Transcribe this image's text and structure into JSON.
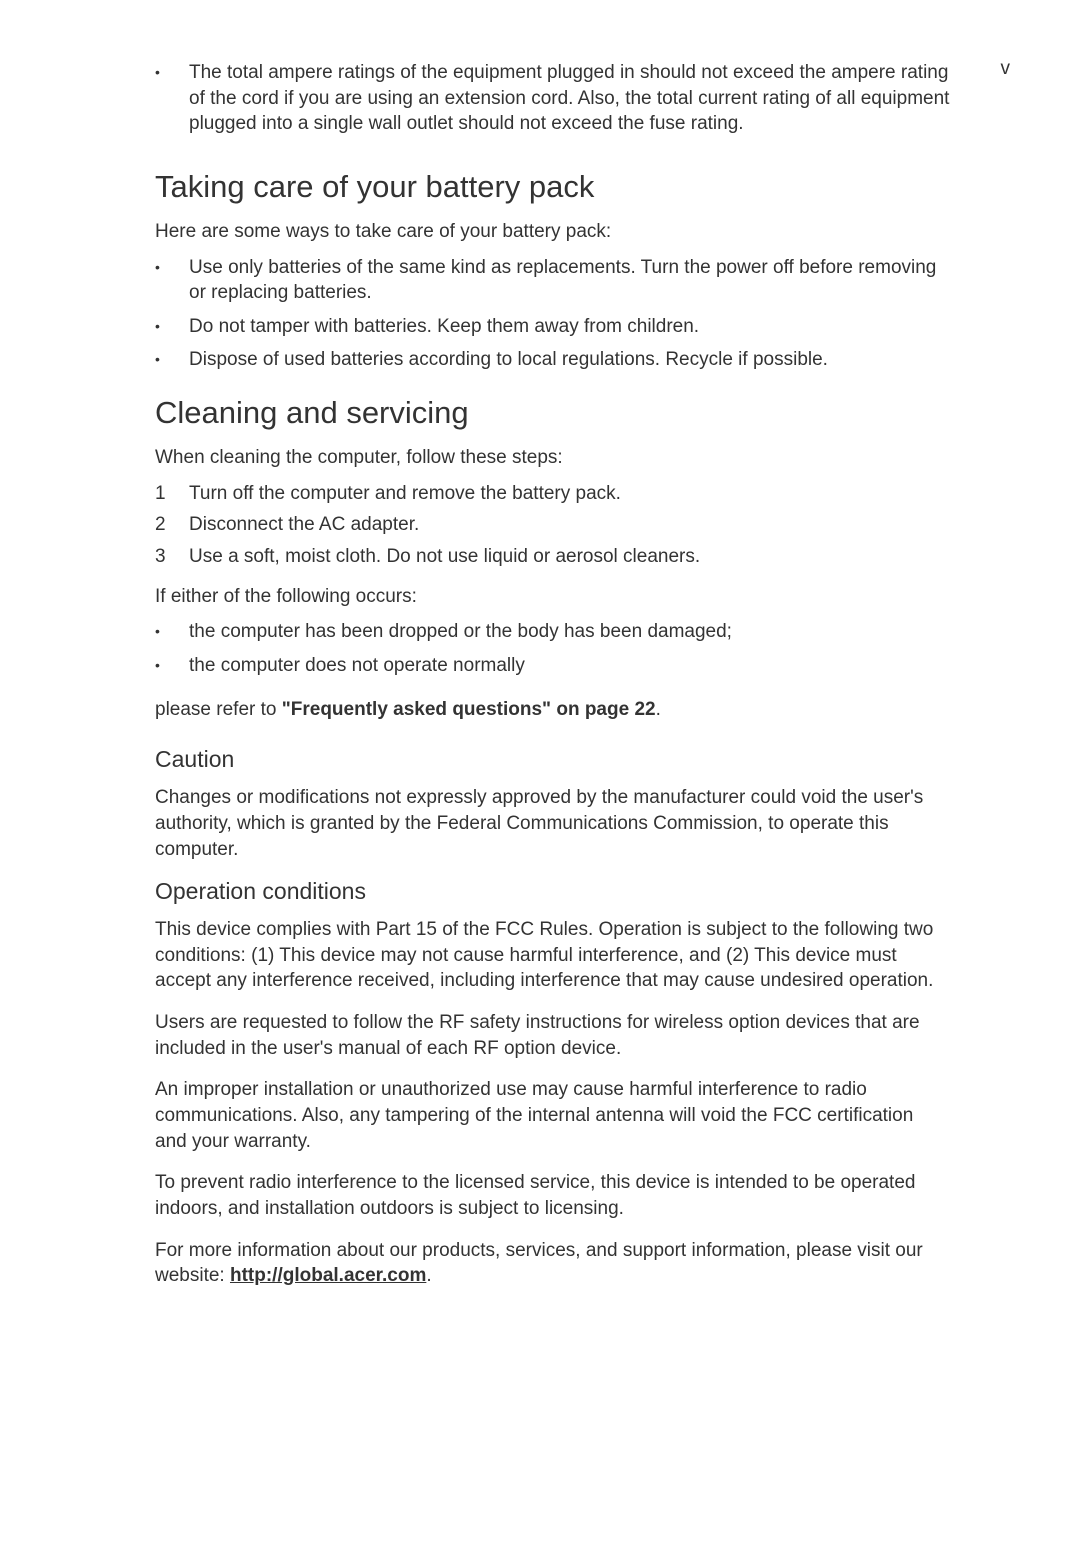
{
  "page_number": "v",
  "intro_bullet": "The total ampere ratings of the equipment plugged in should not exceed the ampere rating of the cord if you are using an extension cord. Also, the total current rating of all equipment plugged into a single wall outlet should not exceed the fuse rating.",
  "section1": {
    "title": "Taking care of your battery pack",
    "intro": "Here are some ways to take care of your battery pack:",
    "bullets": [
      "Use only batteries of the same kind as replacements. Turn the power off before removing or replacing batteries.",
      "Do not tamper with batteries. Keep them away from children.",
      "Dispose of used batteries according to local regulations. Recycle if possible."
    ]
  },
  "section2": {
    "title": "Cleaning and servicing",
    "intro": "When cleaning the computer, follow these steps:",
    "steps": [
      "Turn off the computer and remove the battery pack.",
      "Disconnect the AC adapter.",
      "Use a soft, moist cloth. Do not use liquid or aerosol cleaners."
    ],
    "either_intro": "If either of the following occurs:",
    "either_bullets": [
      "the computer has been dropped or the body has been damaged;",
      "the computer does not operate normally"
    ],
    "refer_prefix": "please refer to ",
    "refer_bold": "\"Frequently asked questions\" on page 22",
    "refer_suffix": "."
  },
  "caution": {
    "title": "Caution",
    "body": "Changes or modifications not expressly approved by the manufacturer could void the user's authority, which is granted by the Federal Communications Commission, to operate this computer."
  },
  "operation": {
    "title": "Operation conditions",
    "p1": "This device complies with Part 15 of the FCC Rules. Operation is subject to the following two conditions: (1) This device may not cause harmful interference, and (2) This device must accept any interference received, including interference that may cause undesired operation.",
    "p2": "Users are requested to follow the RF safety instructions for wireless option devices that are included in the user's manual of each RF option device.",
    "p3": "An improper installation or unauthorized use may cause harmful interference to radio communications. Also, any tampering of the internal antenna will void the FCC certification and your warranty.",
    "p4": "To prevent radio interference to the licensed service, this device is intended to be operated indoors, and installation outdoors is subject to licensing.",
    "p5_prefix": "For more information about our products, services, and support information, please visit our website: ",
    "p5_link": "http://global.acer.com",
    "p5_suffix": "."
  }
}
